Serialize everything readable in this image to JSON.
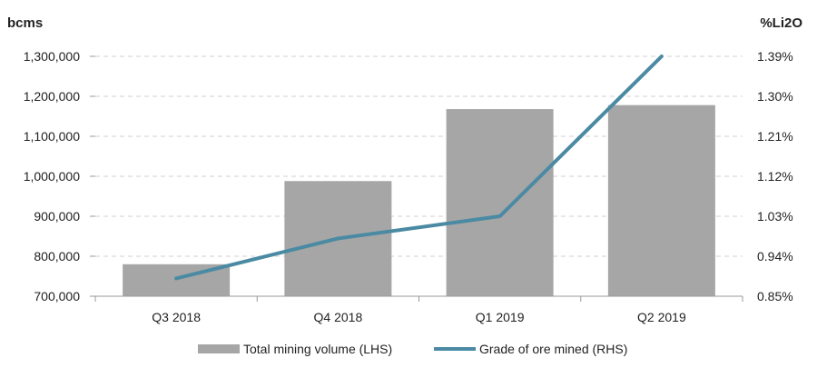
{
  "chart_data": {
    "type": "bar",
    "categories": [
      "Q3 2018",
      "Q4 2018",
      "Q1 2019",
      "Q2 2019"
    ],
    "series": [
      {
        "name": "Total mining volume (LHS)",
        "type": "bar",
        "axis": "left",
        "values": [
          780000,
          988000,
          1168000,
          1178000
        ]
      },
      {
        "name": "Grade of ore mined (RHS)",
        "type": "line",
        "axis": "right",
        "values": [
          0.89,
          0.98,
          1.03,
          1.39
        ]
      }
    ],
    "y_left": {
      "label": "bcms",
      "ylim": [
        700000,
        1300000
      ],
      "ticks": [
        "700,000",
        "800,000",
        "900,000",
        "1,000,000",
        "1,100,000",
        "1,200,000",
        "1,300,000"
      ]
    },
    "y_right": {
      "label": "%Li2O",
      "ylim": [
        0.85,
        1.39
      ],
      "ticks": [
        "0.85%",
        "0.94%",
        "1.03%",
        "1.12%",
        "1.21%",
        "1.30%",
        "1.39%"
      ]
    },
    "grid": "dashed horizontal",
    "legend_position": "bottom",
    "colors": {
      "bar": "#a6a6a6",
      "line": "#4a8aa3",
      "grid": "#d0d0d0",
      "axis": "#999999"
    }
  }
}
